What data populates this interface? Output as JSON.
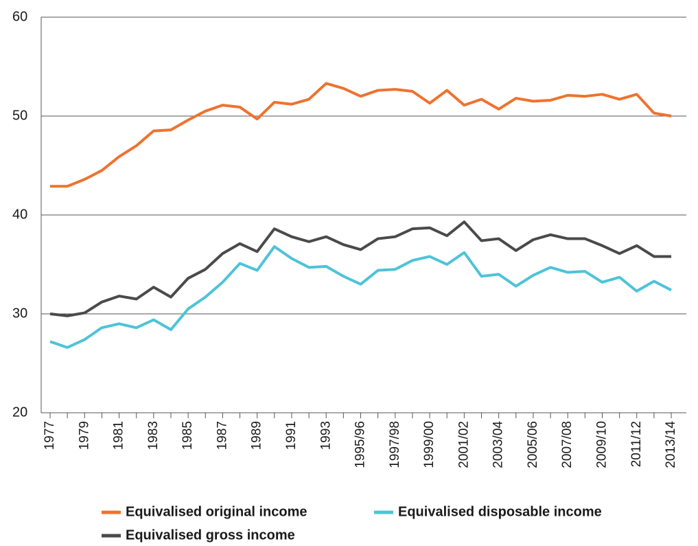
{
  "chart_data": {
    "type": "line",
    "categories": [
      "1977",
      null,
      "1979",
      null,
      "1981",
      null,
      "1983",
      null,
      "1985",
      null,
      "1987",
      null,
      "1989",
      null,
      "1991",
      null,
      "1993",
      null,
      "1995/96",
      null,
      "1997/98",
      null,
      "1999/00",
      null,
      "2001/02",
      null,
      "2003/04",
      null,
      "2005/06",
      null,
      "2007/08",
      null,
      "2009/10",
      null,
      "2011/12",
      null,
      "2013/14"
    ],
    "series": [
      {
        "name": "Equivalised original income",
        "color": "#ee7330",
        "values": [
          42.9,
          42.9,
          43.6,
          44.5,
          45.9,
          47.0,
          48.5,
          48.6,
          49.6,
          50.5,
          51.1,
          50.9,
          49.7,
          51.4,
          51.2,
          51.7,
          53.3,
          52.8,
          52.0,
          52.6,
          52.7,
          52.5,
          51.3,
          52.6,
          51.1,
          51.7,
          50.7,
          51.8,
          51.5,
          51.6,
          52.1,
          52.0,
          52.2,
          51.7,
          52.2,
          50.3,
          50.0
        ]
      },
      {
        "name": "Equivalised disposable income",
        "color": "#4ec3d9",
        "values": [
          27.2,
          26.6,
          27.4,
          28.6,
          29.0,
          28.6,
          29.4,
          28.4,
          30.5,
          31.7,
          33.2,
          35.1,
          34.4,
          36.8,
          35.6,
          34.7,
          34.8,
          33.8,
          33.0,
          34.4,
          34.5,
          35.4,
          35.8,
          35.0,
          36.2,
          33.8,
          34.0,
          32.8,
          33.9,
          34.7,
          34.2,
          34.3,
          33.2,
          33.7,
          32.3,
          33.3,
          32.4
        ]
      },
      {
        "name": "Equivalised gross income",
        "color": "#4a4a4a",
        "values": [
          30.0,
          29.8,
          30.1,
          31.2,
          31.8,
          31.5,
          32.7,
          31.7,
          33.6,
          34.5,
          36.1,
          37.1,
          36.3,
          38.6,
          37.8,
          37.3,
          37.8,
          37.0,
          36.5,
          37.6,
          37.8,
          38.6,
          38.7,
          37.9,
          39.3,
          37.4,
          37.6,
          36.4,
          37.5,
          38.0,
          37.6,
          37.6,
          36.9,
          36.1,
          36.9,
          35.8,
          35.8
        ]
      }
    ],
    "ylim": [
      20,
      60
    ],
    "yticks": [
      20,
      30,
      40,
      50,
      60
    ],
    "grid": true,
    "legend": "bottom"
  }
}
